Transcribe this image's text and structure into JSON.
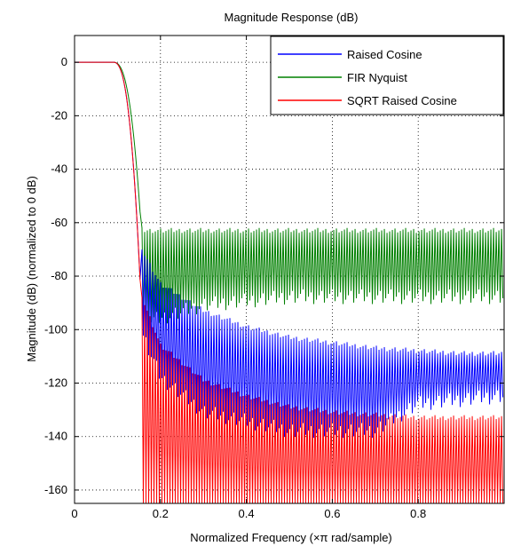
{
  "chart_data": {
    "type": "line",
    "title": "Magnitude Response (dB)",
    "xlabel": "Normalized Frequency  (×π rad/sample)",
    "ylabel": "Magnitude (dB) (normalized to 0 dB)",
    "xlim": [
      0,
      1.0
    ],
    "ylim": [
      -165,
      10
    ],
    "xticks": [
      {
        "value": 0,
        "label": "0"
      },
      {
        "value": 0.2,
        "label": "0.2"
      },
      {
        "value": 0.4,
        "label": "0.4"
      },
      {
        "value": 0.6,
        "label": "0.6"
      },
      {
        "value": 0.8,
        "label": "0.8"
      }
    ],
    "yticks": [
      {
        "value": 0,
        "label": "0"
      },
      {
        "value": -20,
        "label": "-20"
      },
      {
        "value": -40,
        "label": "-40"
      },
      {
        "value": -60,
        "label": "-60"
      },
      {
        "value": -80,
        "label": "-80"
      },
      {
        "value": -100,
        "label": "-100"
      },
      {
        "value": -120,
        "label": "-120"
      },
      {
        "value": -140,
        "label": "-140"
      },
      {
        "value": -160,
        "label": "-160"
      }
    ],
    "grid": true,
    "legend_position": "top-right",
    "series": [
      {
        "name": "Raised Cosine",
        "color": "#0000ff",
        "passband_db": 0,
        "transition_edge": 0.155,
        "stopband_peak_db": [
          [
            0.16,
            -70
          ],
          [
            0.2,
            -82
          ],
          [
            0.3,
            -92
          ],
          [
            0.4,
            -98
          ],
          [
            0.5,
            -102
          ],
          [
            0.6,
            -104
          ],
          [
            0.7,
            -106
          ],
          [
            0.8,
            -107
          ],
          [
            0.9,
            -108
          ],
          [
            1.0,
            -108
          ]
        ],
        "stopband_floor_db": [
          [
            0.16,
            -100
          ],
          [
            0.2,
            -115
          ],
          [
            0.3,
            -128
          ],
          [
            0.5,
            -135
          ],
          [
            0.7,
            -135
          ],
          [
            0.8,
            -125
          ],
          [
            1.0,
            -122
          ]
        ]
      },
      {
        "name": "FIR Nyquist",
        "color": "#008000",
        "passband_db": 0,
        "transition_edge": 0.155,
        "stopband_peak_db": [
          [
            0.16,
            -62
          ],
          [
            1.0,
            -62
          ]
        ],
        "stopband_floor_db": [
          [
            0.16,
            -95
          ],
          [
            0.3,
            -88
          ],
          [
            0.5,
            -85
          ],
          [
            0.7,
            -85
          ],
          [
            1.0,
            -85
          ]
        ]
      },
      {
        "name": "SQRT Raised Cosine",
        "color": "#ff0000",
        "passband_db": 0,
        "transition_edge": 0.155,
        "stopband_peak_db": [
          [
            0.16,
            -88
          ],
          [
            0.2,
            -105
          ],
          [
            0.3,
            -118
          ],
          [
            0.4,
            -124
          ],
          [
            0.5,
            -128
          ],
          [
            0.6,
            -130
          ],
          [
            0.8,
            -132
          ],
          [
            1.0,
            -132
          ]
        ],
        "stopband_floor_db": [
          [
            0.16,
            -165
          ],
          [
            1.0,
            -165
          ]
        ]
      }
    ]
  }
}
